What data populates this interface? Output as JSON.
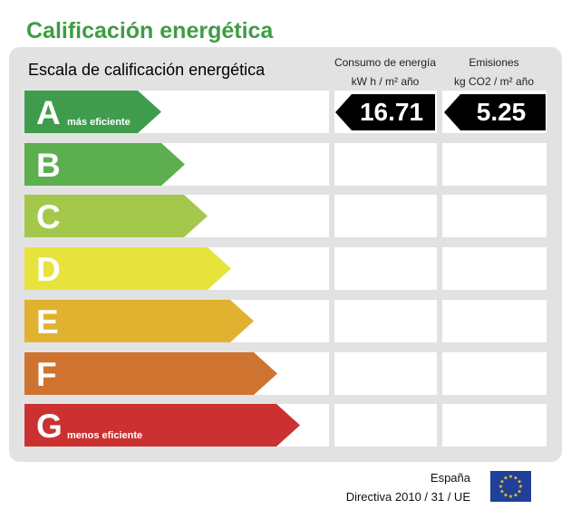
{
  "title": "Calificación energética",
  "scale_title": "Escala de calificación energética",
  "columns": {
    "consumo_line1": "Consumo de energía",
    "consumo_line2": "kW h / m² año",
    "emisiones_line1": "Emisiones",
    "emisiones_line2": "kg CO2 / m² año"
  },
  "classes": [
    {
      "letter": "A",
      "label": "más eficiente",
      "color": "#3f9c4c"
    },
    {
      "letter": "B",
      "label": "",
      "color": "#5cae4f"
    },
    {
      "letter": "C",
      "label": "",
      "color": "#a4c84c"
    },
    {
      "letter": "D",
      "label": "",
      "color": "#e8e33c"
    },
    {
      "letter": "E",
      "label": "",
      "color": "#e0b22f"
    },
    {
      "letter": "F",
      "label": "",
      "color": "#cf7330"
    },
    {
      "letter": "G",
      "label": "menos eficiente",
      "color": "#cb3131"
    }
  ],
  "rating": {
    "class": "A",
    "consumo": "16.71",
    "emisiones": "5.25"
  },
  "footer": {
    "country": "España",
    "directive": "Directiva 2010 / 31 / UE"
  }
}
